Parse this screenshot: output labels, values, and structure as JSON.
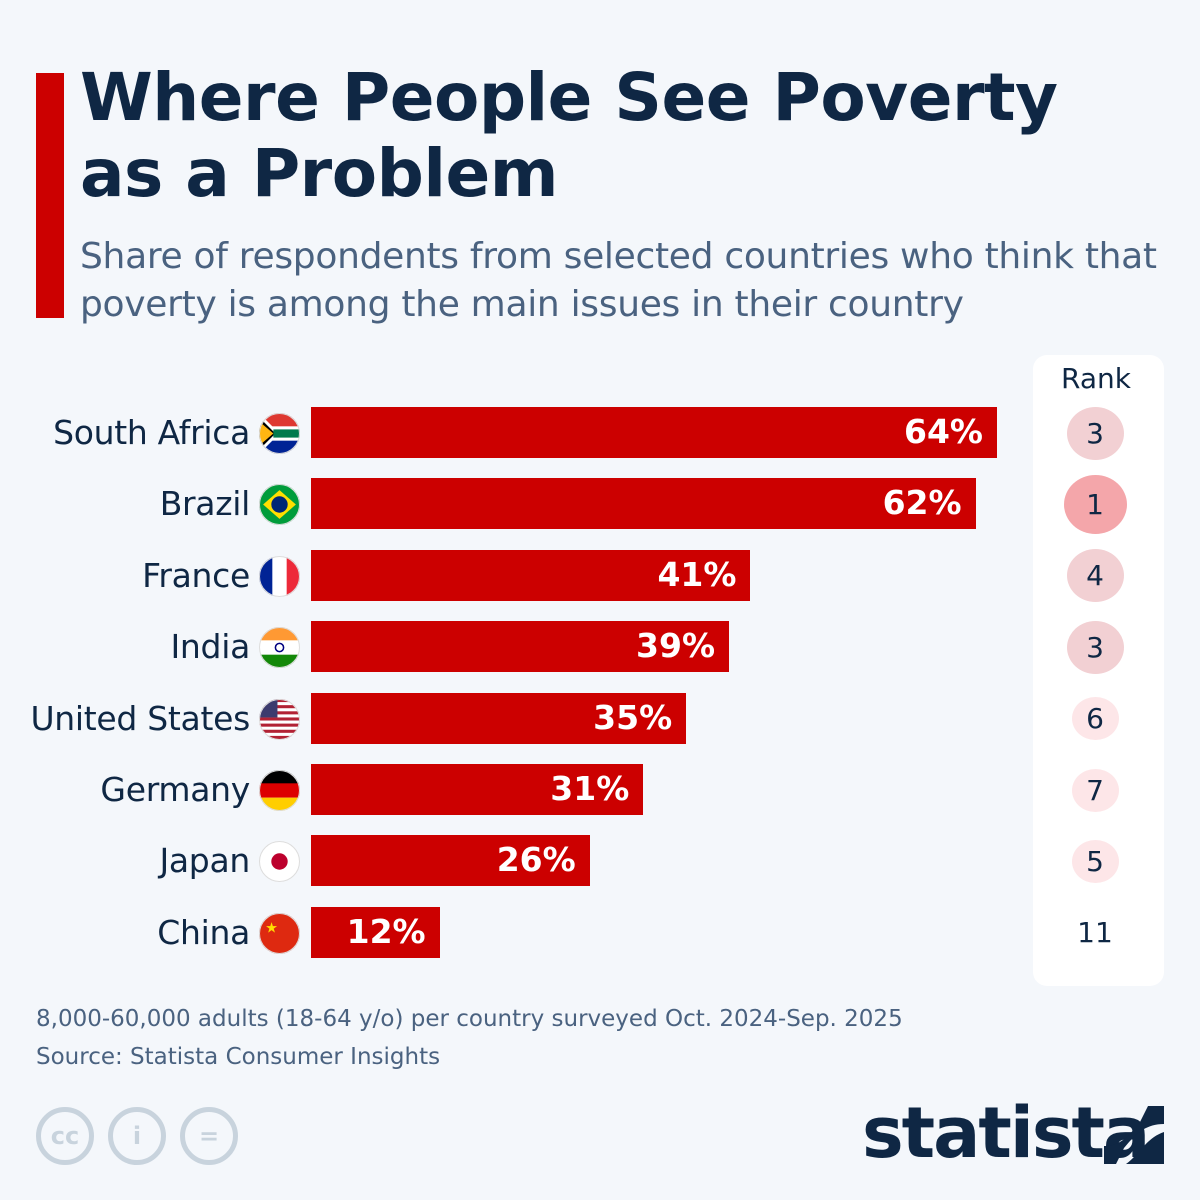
{
  "title": "Where People See Poverty as a Problem",
  "subtitle": "Share of respondents from selected countries who think that poverty is among the main issues in their country",
  "rank_header": "Rank",
  "footer": {
    "note": "8,000-60,000 adults (18-64 y/o) per country surveyed Oct. 2024-Sep. 2025",
    "source": "Source: Statista Consumer Insights",
    "logo": "statista"
  },
  "colors": {
    "bar": "#cc0000",
    "title": "#0f2744",
    "rank1": "#f4a6aa",
    "rank_mid": "#f2d0d3",
    "rank_low": "#fde6e8"
  },
  "chart_data": {
    "type": "bar",
    "orientation": "horizontal",
    "title": "Where People See Poverty as a Problem",
    "xlabel": "",
    "ylabel": "",
    "xlim": [
      0,
      100
    ],
    "unit": "%",
    "categories": [
      "South Africa",
      "Brazil",
      "France",
      "India",
      "United States",
      "Germany",
      "Japan",
      "China"
    ],
    "values": [
      64,
      62,
      41,
      39,
      35,
      31,
      26,
      12
    ],
    "labels": [
      "64%",
      "62%",
      "41%",
      "39%",
      "35%",
      "31%",
      "26%",
      "12%"
    ],
    "ranks": [
      "3",
      "1",
      "4",
      "3",
      "6",
      "7",
      "5",
      "11"
    ],
    "flags": [
      "za-flag-icon",
      "br-flag-icon",
      "fr-flag-icon",
      "in-flag-icon",
      "us-flag-icon",
      "de-flag-icon",
      "jp-flag-icon",
      "cn-flag-icon"
    ]
  }
}
